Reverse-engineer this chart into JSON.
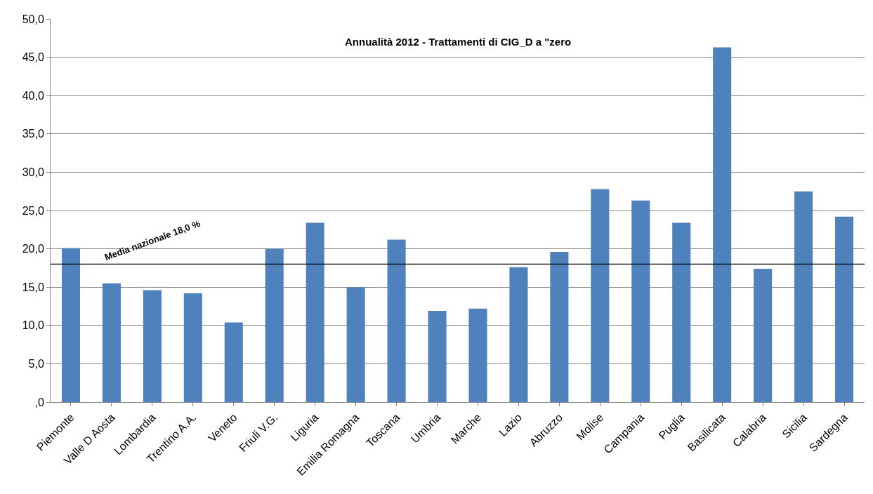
{
  "chart_data": {
    "type": "bar",
    "title": "Annualità 2012 - Trattamenti di CIG_D a \"zero",
    "categories": [
      "Piemonte",
      "Valle D Aosta",
      "Lombardia",
      "Trentino A.A.",
      "Veneto",
      "Friuli V.G.",
      "Liguria",
      "Emilia Romagna",
      "Toscana",
      "Umbria",
      "Marche",
      "Lazio",
      "Abruzzo",
      "Molise",
      "Campania",
      "Puglia",
      "Basilicata",
      "Calabria",
      "Sicilia",
      "Sardegna"
    ],
    "values": [
      20.1,
      15.5,
      14.6,
      14.2,
      10.4,
      20.0,
      23.4,
      15.0,
      21.2,
      11.9,
      12.2,
      17.6,
      19.6,
      27.8,
      26.3,
      23.4,
      46.3,
      17.4,
      27.5,
      24.2
    ],
    "color": "#4f81bd",
    "ylim": [
      0,
      50
    ],
    "yticks": [
      {
        "value": 0,
        "label": ",0"
      },
      {
        "value": 5,
        "label": "5,0"
      },
      {
        "value": 10,
        "label": "10,0"
      },
      {
        "value": 15,
        "label": "15,0"
      },
      {
        "value": 20,
        "label": "20,0"
      },
      {
        "value": 25,
        "label": "25,0"
      },
      {
        "value": 30,
        "label": "30,0"
      },
      {
        "value": 35,
        "label": "35,0"
      },
      {
        "value": 40,
        "label": "40,0"
      },
      {
        "value": 45,
        "label": "45,0"
      },
      {
        "value": 50,
        "label": "50,0"
      }
    ],
    "grid": "y",
    "ref_lines": [
      {
        "axis": "y",
        "value": 18.0,
        "label": "Media nazionale 18,0 %",
        "color": "#000000"
      }
    ]
  }
}
